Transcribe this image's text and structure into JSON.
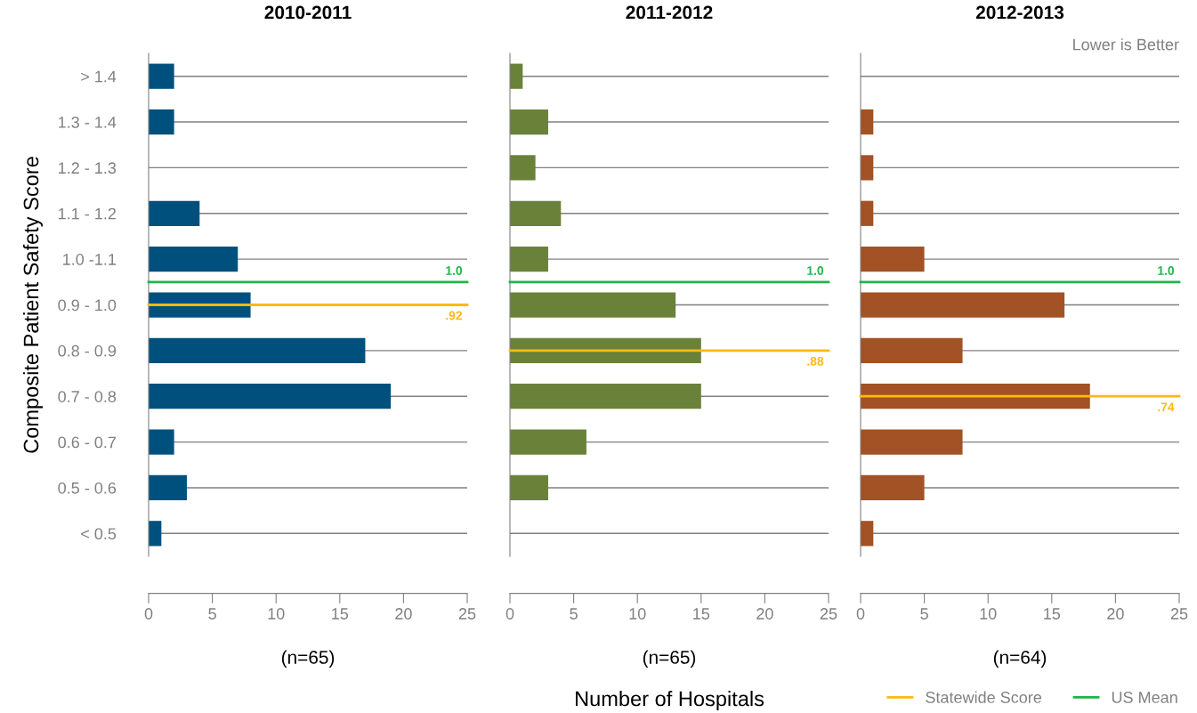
{
  "chart_data": [
    {
      "type": "bar",
      "orientation": "horizontal",
      "title": "2010-2011",
      "ylabel": "Composite Patient Safety Score",
      "categories": [
        "> 1.4",
        "1.3 - 1.4",
        "1.2 - 1.3",
        "1.1 - 1.2",
        "1.0 -1.1",
        "0.9 - 1.0",
        "0.8 - 0.9",
        "0.7 - 0.8",
        "0.6 - 0.7",
        "0.5 - 0.6",
        "< 0.5"
      ],
      "values": [
        2,
        2,
        0,
        4,
        7,
        8,
        17,
        19,
        2,
        3,
        1
      ],
      "color": "#00507d",
      "xlim": [
        0,
        25
      ],
      "xticks": [
        0,
        5,
        10,
        15,
        20,
        25
      ],
      "grid": "y",
      "ref_lines": [
        {
          "axis": "y",
          "value": "1.0 -1.1",
          "label": "1.0",
          "color": "#1db54a"
        },
        {
          "axis": "y",
          "value": "0.9 - 1.0",
          "label": ".92",
          "color": "#fdb913"
        }
      ],
      "annotations": [
        "(n=65)"
      ]
    },
    {
      "type": "bar",
      "orientation": "horizontal",
      "title": "2011-2012",
      "xlabel": "Number of Hospitals",
      "categories": [
        "> 1.4",
        "1.3 - 1.4",
        "1.2 - 1.3",
        "1.1 - 1.2",
        "1.0 -1.1",
        "0.9 - 1.0",
        "0.8 - 0.9",
        "0.7 - 0.8",
        "0.6 - 0.7",
        "0.5 - 0.6",
        "< 0.5"
      ],
      "values": [
        1,
        3,
        2,
        4,
        3,
        13,
        15,
        15,
        6,
        3,
        0
      ],
      "color": "#6a8139",
      "xlim": [
        0,
        25
      ],
      "xticks": [
        0,
        5,
        10,
        15,
        20,
        25
      ],
      "grid": "y",
      "tick_labels": "x",
      "ref_lines": [
        {
          "axis": "y",
          "value": "1.0 -1.1",
          "label": "1.0",
          "color": "#1db54a"
        },
        {
          "axis": "y",
          "value": "0.8 - 0.9",
          "label": ".88",
          "color": "#fdb913"
        }
      ],
      "annotations": [
        "(n=65)"
      ]
    },
    {
      "type": "bar",
      "orientation": "horizontal",
      "title": "2012-2013",
      "categories": [
        "> 1.4",
        "1.3 - 1.4",
        "1.2 - 1.3",
        "1.1 - 1.2",
        "1.0 -1.1",
        "0.9 - 1.0",
        "0.8 - 0.9",
        "0.7 - 0.8",
        "0.6 - 0.7",
        "0.5 - 0.6",
        "< 0.5"
      ],
      "values": [
        0,
        1,
        1,
        1,
        5,
        16,
        8,
        18,
        8,
        5,
        1
      ],
      "color": "#a25224",
      "xlim": [
        0,
        25
      ],
      "xticks": [
        0,
        5,
        10,
        15,
        20,
        25
      ],
      "grid": "y",
      "tick_labels": "x",
      "ref_lines": [
        {
          "axis": "y",
          "value": "1.0 -1.1",
          "label": "1.0",
          "color": "#1db54a"
        },
        {
          "axis": "y",
          "value": "0.7 - 0.8",
          "label": ".74",
          "color": "#fdb913"
        }
      ],
      "annotations": [
        "(n=64)",
        "Lower is Better",
        "Statewide Score",
        "US Mean"
      ]
    }
  ]
}
